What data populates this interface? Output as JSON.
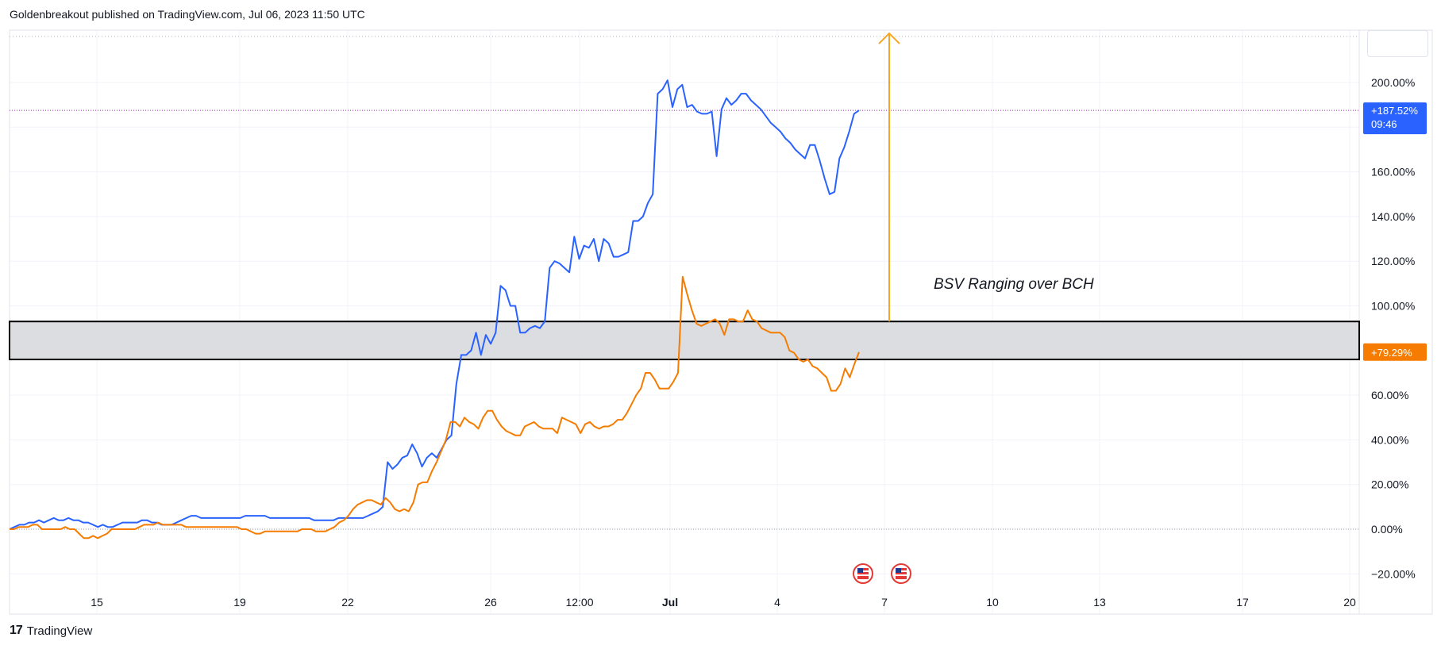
{
  "header": {
    "text": "Goldenbreakout published on TradingView.com, Jul 06, 2023 11:50 UTC"
  },
  "footer": {
    "logo": "17",
    "brand": "TradingView"
  },
  "annotation": {
    "text": "BSV Ranging over BCH"
  },
  "price_tags": {
    "blue": {
      "value": "+187.52%",
      "time": "09:46",
      "color": "#2962ff"
    },
    "orange": {
      "value": "+79.29%",
      "color": "#f57c00"
    }
  },
  "colors": {
    "blue_line": "#2962ff",
    "orange_line": "#f57c00",
    "arrow": "#f5a623",
    "zone_fill": "#dcdde1",
    "zone_border": "#000000"
  },
  "icons": [
    "us-flag-event-icon",
    "us-flag-event-icon"
  ],
  "chart_data": {
    "type": "line",
    "title": "",
    "xlabel": "",
    "ylabel": "",
    "x_ticks": [
      "15",
      "19",
      "22",
      "26",
      "12:00",
      "Jul",
      "4",
      "7",
      "10",
      "13",
      "17",
      "20"
    ],
    "y_ticks": [
      "200.00%",
      "180.00%",
      "160.00%",
      "140.00%",
      "120.00%",
      "100.00%",
      "80.00%",
      "60.00%",
      "40.00%",
      "20.00%",
      "0.00%",
      "−20.00%"
    ],
    "ylim": [
      -25,
      223
    ],
    "grid": true,
    "zone": {
      "from": 76,
      "to": 93
    },
    "arrow": {
      "from": 93,
      "to": 222
    },
    "series": [
      {
        "color": "#2962ff",
        "last_value": 187.52,
        "values": [
          0,
          1,
          2,
          2,
          3,
          3,
          4,
          3,
          4,
          5,
          4,
          4,
          5,
          4,
          4,
          3,
          3,
          2,
          1,
          2,
          1,
          1,
          2,
          3,
          3,
          3,
          3,
          4,
          4,
          3,
          3,
          2,
          2,
          2,
          3,
          4,
          5,
          6,
          6,
          5,
          5,
          5,
          5,
          5,
          5,
          5,
          5,
          5,
          6,
          6,
          6,
          6,
          6,
          5,
          5,
          5,
          5,
          5,
          5,
          5,
          5,
          5,
          4,
          4,
          4,
          4,
          4,
          5,
          5,
          5,
          5,
          5,
          5,
          6,
          7,
          8,
          10,
          30,
          27,
          29,
          32,
          33,
          38,
          34,
          28,
          32,
          34,
          32,
          36,
          40,
          42,
          65,
          78,
          78,
          80,
          88,
          78,
          87,
          83,
          88,
          109,
          107,
          100,
          100,
          88,
          88,
          90,
          91,
          90,
          93,
          117,
          120,
          119,
          117,
          115,
          131,
          121,
          127,
          126,
          130,
          120,
          130,
          128,
          122,
          122,
          123,
          124,
          138,
          138,
          140,
          146,
          150,
          195,
          197,
          201,
          189,
          197,
          199,
          189,
          190,
          187,
          186,
          186,
          187,
          167,
          188,
          193,
          190,
          192,
          195,
          195,
          192,
          190,
          188,
          185,
          182,
          180,
          178,
          175,
          173,
          170,
          168,
          166,
          172,
          172,
          165,
          157,
          150,
          151,
          166,
          171,
          178,
          186,
          187.52
        ]
      },
      {
        "color": "#f57c00",
        "last_value": 79.29,
        "values": [
          0,
          0,
          1,
          1,
          1,
          2,
          2,
          0,
          0,
          0,
          0,
          0,
          1,
          0,
          0,
          -2,
          -4,
          -4,
          -3,
          -4,
          -3,
          -2,
          0,
          0,
          0,
          0,
          0,
          0,
          1,
          2,
          2,
          2,
          3,
          2,
          2,
          2,
          2,
          2,
          1,
          1,
          1,
          1,
          1,
          1,
          1,
          1,
          1,
          1,
          1,
          1,
          0,
          0,
          -1,
          -2,
          -2,
          -1,
          -1,
          -1,
          -1,
          -1,
          -1,
          -1,
          -1,
          0,
          0,
          0,
          -1,
          -1,
          -1,
          0,
          1,
          3,
          4,
          6,
          9,
          11,
          12,
          13,
          13,
          12,
          11,
          14,
          12,
          9,
          8,
          9,
          8,
          12,
          20,
          21,
          21,
          26,
          30,
          35,
          40,
          48,
          48,
          46,
          50,
          48,
          47,
          45,
          50,
          53,
          53,
          49,
          46,
          44,
          43,
          42,
          42,
          46,
          47,
          48,
          46,
          45,
          45,
          45,
          43,
          50,
          49,
          48,
          47,
          43,
          47,
          48,
          46,
          45,
          46,
          46,
          47,
          49,
          49,
          52,
          56,
          60,
          63,
          70,
          70,
          67,
          63,
          63,
          63,
          66,
          70,
          113,
          105,
          98,
          92,
          91,
          92,
          93,
          94,
          92,
          87,
          94,
          94,
          93,
          93,
          98,
          94,
          93,
          90,
          89,
          88,
          88,
          88,
          86,
          80,
          79,
          76,
          75,
          76,
          73,
          72,
          70,
          68,
          62,
          62,
          65,
          72,
          68,
          74,
          79.29
        ]
      }
    ]
  }
}
